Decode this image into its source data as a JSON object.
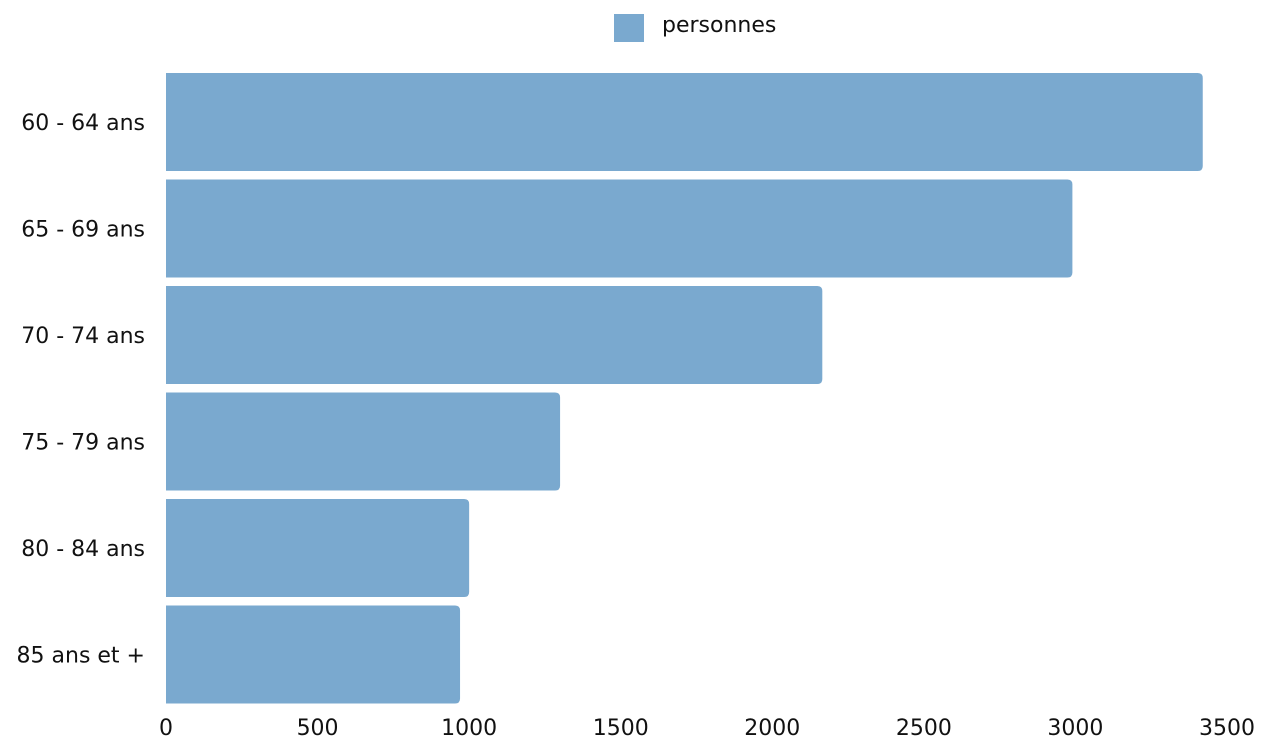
{
  "chart_data": {
    "type": "bar",
    "orientation": "horizontal",
    "categories": [
      "60 - 64 ans",
      "65 - 69 ans",
      "70 - 74 ans",
      "75 - 79 ans",
      "80 - 84 ans",
      "85 ans et +"
    ],
    "series": [
      {
        "name": "personnes",
        "color": "#7aa9cf",
        "values": [
          3420,
          2990,
          2165,
          1300,
          1000,
          970
        ]
      }
    ],
    "xlim": [
      0,
      3500
    ],
    "xticks": [
      0,
      500,
      1000,
      1500,
      2000,
      2500,
      3000,
      3500
    ],
    "grid": false,
    "legend": {
      "position": "top-center",
      "label": "personnes"
    },
    "title": "",
    "xlabel": "",
    "ylabel": ""
  }
}
